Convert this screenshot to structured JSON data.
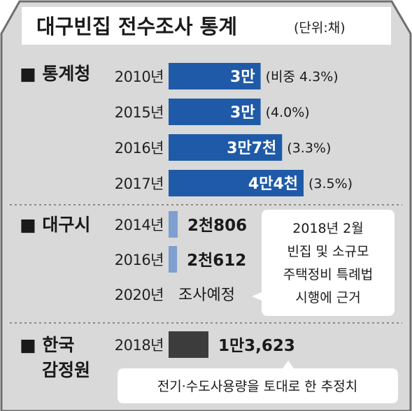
{
  "title": "대구빈집 전수조사 통계",
  "unit": "(단위:채)",
  "colors": {
    "background": "#d9d9d9",
    "house_outline": "#6f6f6f",
    "blue_bar": "#1f5aa8",
    "light_blue_bar": "#7f9fd0",
    "dark_bar": "#3c3c3c"
  },
  "sections": [
    {
      "name": "■ 통계청",
      "name_lines": [
        "■ 통계청"
      ]
    },
    {
      "name": "■ 대구시",
      "name_lines": [
        "■ 대구시"
      ]
    },
    {
      "name": "■ 한국 감정원",
      "name_lines": [
        "■ 한국",
        "감정원"
      ]
    }
  ],
  "notes": {
    "daegu": [
      "2018년 2월",
      "빈집 및 소규모",
      "주택정비 특례법",
      "시행에 근거"
    ],
    "kab": "전기·수도사용량을 토대로 한 추정치"
  },
  "chart_data": {
    "type": "bar",
    "orientation": "horizontal",
    "title": "대구빈집 전수조사 통계",
    "unit": "채",
    "groups": [
      {
        "source": "통계청",
        "bar_color": "#1f5aa8",
        "rows": [
          {
            "year": "2010년",
            "value": 30000,
            "label": "3만",
            "share": "(비중 4.3%)"
          },
          {
            "year": "2015년",
            "value": 30000,
            "label": "3만",
            "share": "(4.0%)"
          },
          {
            "year": "2016년",
            "value": 37000,
            "label": "3만7천",
            "share": "(3.3%)"
          },
          {
            "year": "2017년",
            "value": 44000,
            "label": "4만4천",
            "share": "(3.5%)"
          }
        ]
      },
      {
        "source": "대구시",
        "bar_color": "#7f9fd0",
        "rows": [
          {
            "year": "2014년",
            "value": 2806,
            "label": "2천806"
          },
          {
            "year": "2016년",
            "value": 2612,
            "label": "2천612"
          },
          {
            "year": "2020년",
            "value": null,
            "label": "조사예정"
          }
        ]
      },
      {
        "source": "한국감정원",
        "bar_color": "#3c3c3c",
        "rows": [
          {
            "year": "2018년",
            "value": 13623,
            "label": "1만3,623"
          }
        ]
      }
    ]
  }
}
